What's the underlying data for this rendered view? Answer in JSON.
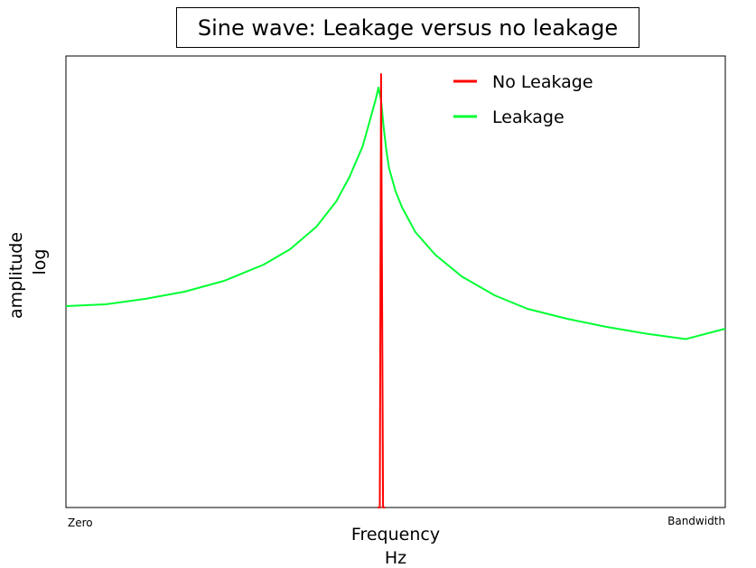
{
  "chart_data": {
    "type": "line",
    "title": "Sine wave: Leakage versus no leakage",
    "xlabel": [
      "Frequency",
      "Hz"
    ],
    "ylabel": [
      "amplitude",
      "log"
    ],
    "x_tick_labels": [
      "Zero",
      "Bandwidth"
    ],
    "xlim": [
      0,
      1
    ],
    "ylim": [
      0,
      1
    ],
    "y_scale": "log",
    "grid": false,
    "legend_position": "top-right",
    "series": [
      {
        "name": "No Leakage",
        "color": "#ff0000",
        "x": [
          0.473,
          0.476,
          0.478,
          0.481,
          0.484
        ],
        "y": [
          0.0,
          0.0,
          0.96,
          0.0,
          0.0
        ]
      },
      {
        "name": "Leakage",
        "color": "#00ff33",
        "x": [
          0.0,
          0.06,
          0.12,
          0.18,
          0.24,
          0.3,
          0.34,
          0.38,
          0.41,
          0.43,
          0.45,
          0.46,
          0.47,
          0.474,
          0.478,
          0.482,
          0.486,
          0.49,
          0.5,
          0.51,
          0.53,
          0.56,
          0.6,
          0.65,
          0.7,
          0.76,
          0.82,
          0.88,
          0.94,
          1.0
        ],
        "y": [
          0.446,
          0.45,
          0.462,
          0.478,
          0.502,
          0.538,
          0.572,
          0.622,
          0.678,
          0.732,
          0.8,
          0.852,
          0.905,
          0.93,
          0.902,
          0.84,
          0.79,
          0.752,
          0.7,
          0.664,
          0.61,
          0.56,
          0.512,
          0.47,
          0.44,
          0.418,
          0.4,
          0.385,
          0.373,
          0.396
        ]
      }
    ]
  }
}
